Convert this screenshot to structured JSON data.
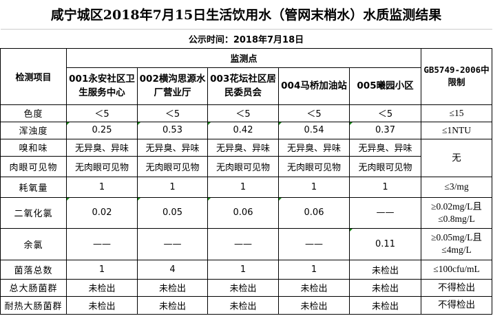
{
  "title": "咸宁城区2018年7月15日生活饮用水（管网末梢水）水质监测结果",
  "date": "公示时间：2018年7月18日",
  "header": {
    "item": "检测项目",
    "points": "监测点",
    "limit": "GB5749-2006中限制",
    "sites": [
      "001永安社区卫生服务中心",
      "002横沟思源水厂营业厅",
      "003花坛社区居民委员会",
      "004马桥加油站",
      "005曦园小区"
    ]
  },
  "rows": [
    {
      "item": "色度",
      "values": [
        "＜5",
        "＜5",
        "＜5",
        "＜5",
        "＜5"
      ],
      "limit": "≤15"
    },
    {
      "item": "浑浊度",
      "values": [
        "0.25",
        "0.53",
        "0.42",
        "0.54",
        "0.37"
      ],
      "limit": "≤1NTU"
    },
    {
      "item": "嗅和味",
      "values": [
        "无异臭、异味",
        "无异臭、异味",
        "无异臭、异味",
        "无异臭、异味",
        "无异臭、异味"
      ],
      "limit": "无"
    },
    {
      "item": "肉眼可见物",
      "values": [
        "无肉眼可见物",
        "无肉眼可见物",
        "无肉眼可见物",
        "无肉眼可见物",
        "无肉眼可见物"
      ]
    },
    {
      "item": "耗氧量",
      "values": [
        "1",
        "1",
        "1",
        "1",
        "1"
      ],
      "limit": "≤3/mg"
    },
    {
      "item": "二氧化氯",
      "values": [
        "0.02",
        "0.05",
        "0.06",
        "0.06",
        "——"
      ],
      "limit": "≥0.02mg/L且≤0.8mg/L"
    },
    {
      "item": "余氯",
      "values": [
        "——",
        "——",
        "——",
        "——",
        "0.11"
      ],
      "limit": "≥0.05mg/L且≤4mg/L"
    },
    {
      "item": "菌落总数",
      "values": [
        "1",
        "4",
        "1",
        "1",
        "未检出"
      ],
      "limit": "≤100cfu/mL"
    },
    {
      "item": "总大肠菌群",
      "values": [
        "未检出",
        "未检出",
        "未检出",
        "未检出",
        "未检出"
      ],
      "limit": "不得检出"
    },
    {
      "item": "耐热大肠菌群",
      "values": [
        "未检出",
        "未检出",
        "未检出",
        "未检出",
        "未检出"
      ],
      "limit": "不得检出"
    }
  ]
}
